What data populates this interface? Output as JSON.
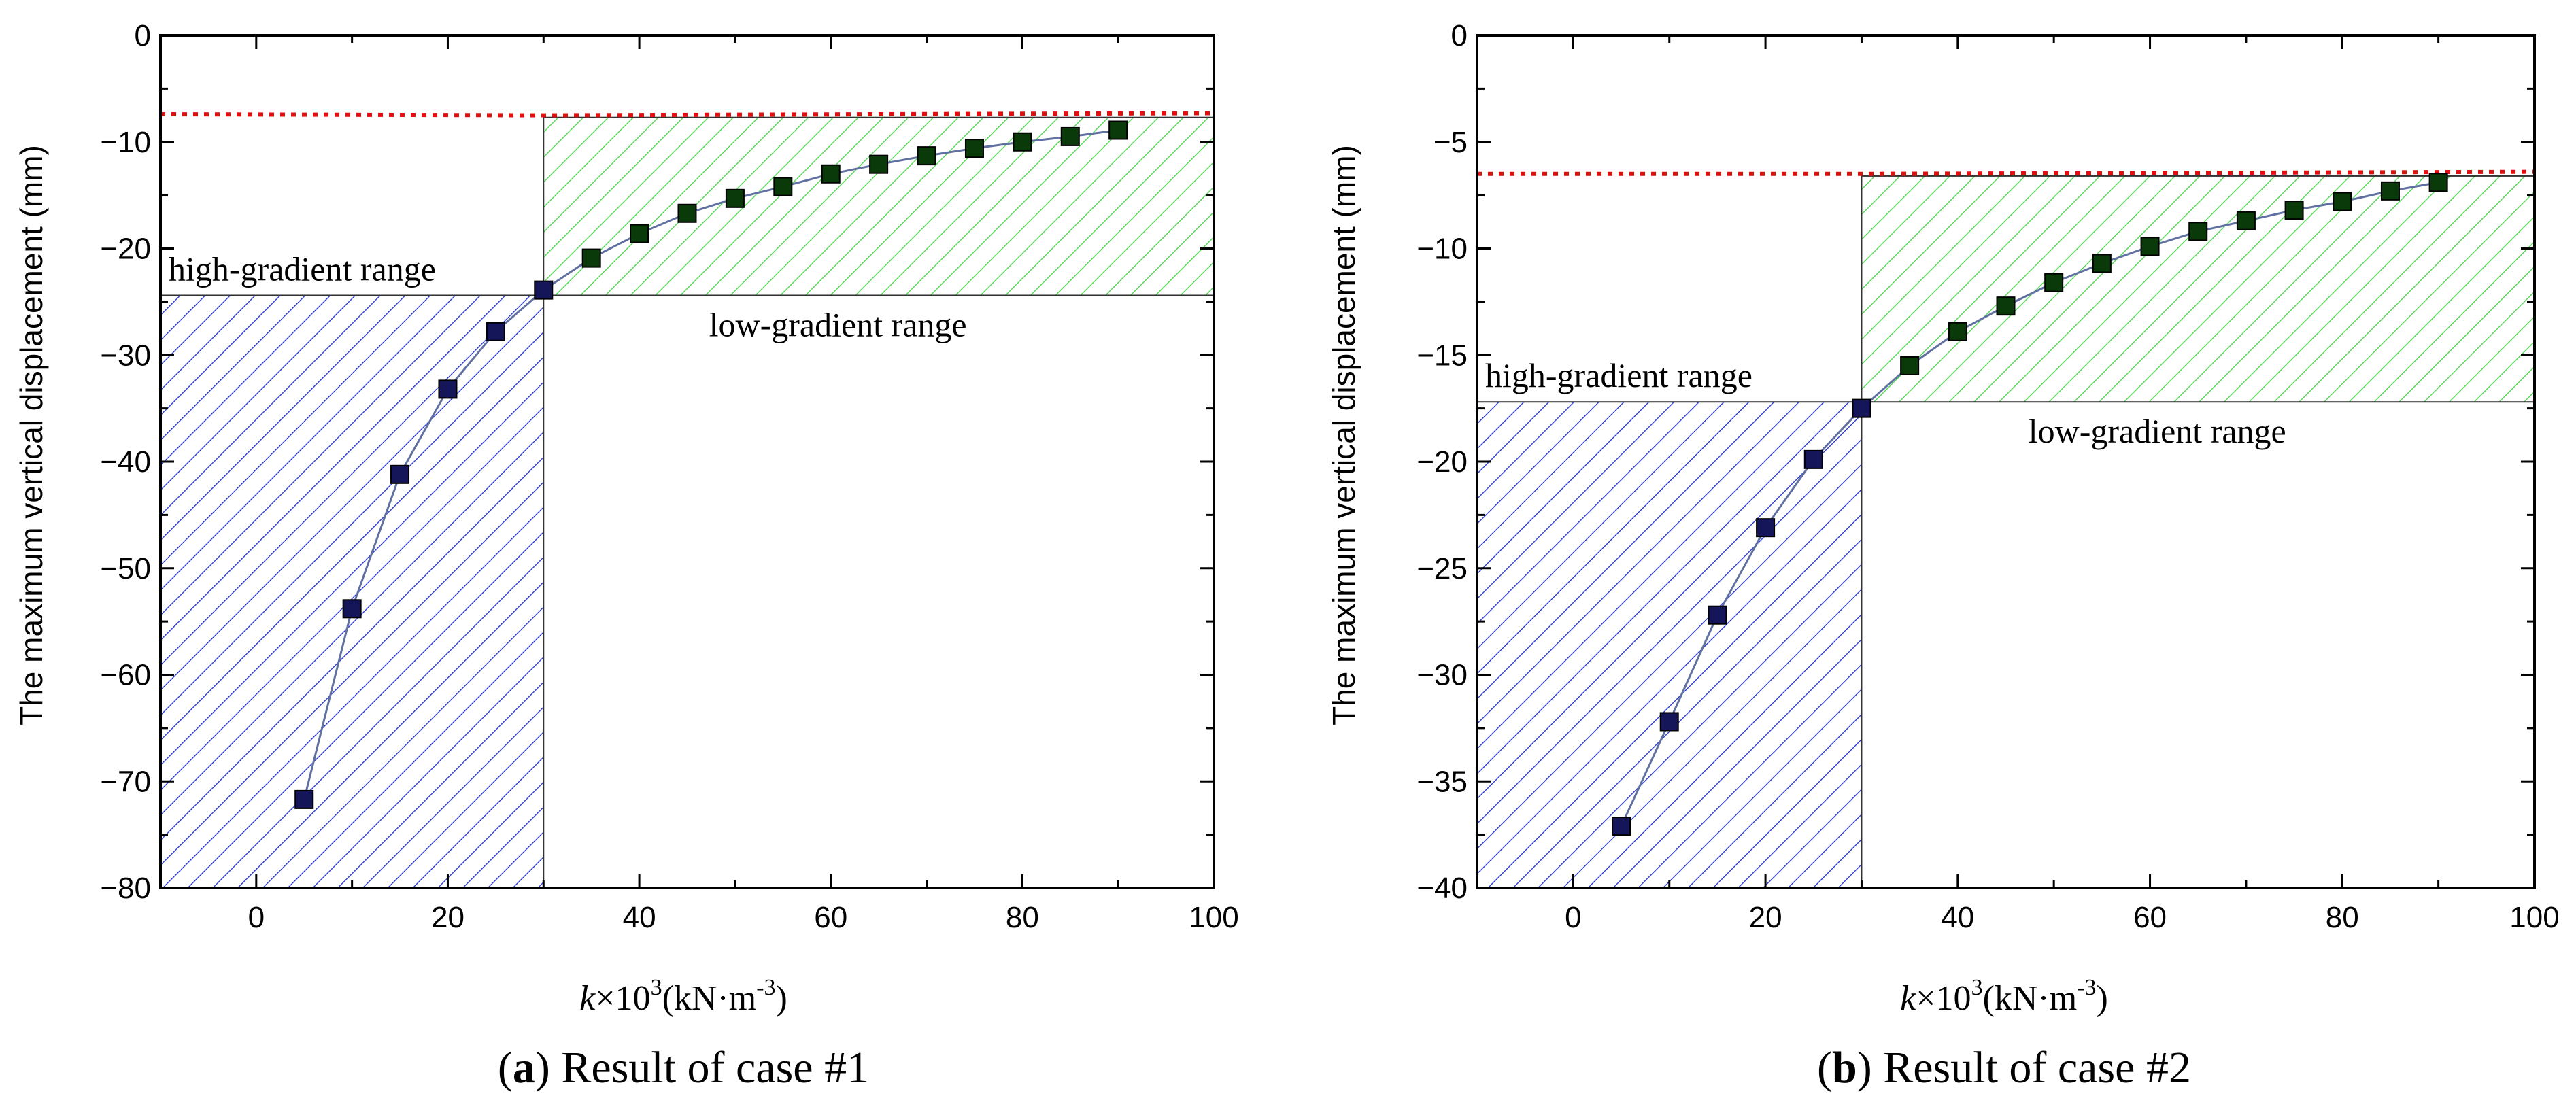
{
  "chart_data": [
    {
      "type": "line",
      "panel_letter": "a",
      "caption": "Result of case #1",
      "xlabel": {
        "var": "k",
        "times": "×10",
        "exp": "3",
        "unit_open": "(kN·m",
        "unit_exp": "-3",
        "unit_close": ")"
      },
      "ylabel": "The maximum vertical displacement (mm)",
      "xlim": [
        -10,
        100
      ],
      "ylim": [
        -80,
        0
      ],
      "xticks": [
        0,
        20,
        40,
        60,
        80,
        100
      ],
      "yticks": [
        -80,
        -70,
        -60,
        -50,
        -40,
        -30,
        -20,
        -10,
        0
      ],
      "x": [
        5,
        10,
        15,
        20,
        25,
        30,
        35,
        40,
        45,
        50,
        55,
        60,
        65,
        70,
        75,
        80,
        85,
        90
      ],
      "y": [
        -71.7,
        -53.8,
        -41.2,
        -33.2,
        -27.8,
        -23.9,
        -20.9,
        -18.6,
        -16.7,
        -15.3,
        -14.2,
        -13.0,
        -12.1,
        -11.3,
        -10.6,
        -10.0,
        -9.5,
        -8.9
      ],
      "reference_line": {
        "x": [
          -10,
          30,
          100
        ],
        "y": [
          -7.4,
          -7.5,
          -7.3
        ],
        "style": "dotted red"
      },
      "regions": [
        {
          "label": "high-gradient range",
          "x": [
            -10,
            30
          ],
          "y": [
            -80,
            -24.4
          ],
          "color": "#1f2fcf",
          "hatch": "diagonal"
        },
        {
          "label": "low-gradient range",
          "x": [
            30,
            100
          ],
          "y": [
            -24.4,
            -7.7
          ],
          "color": "#44d444",
          "hatch": "diagonal"
        }
      ],
      "colors": {
        "marker_fill_high": "#15155a",
        "marker_fill_low": "#0a3a0a",
        "line": "#6070a0",
        "reference": "#e01010"
      }
    },
    {
      "type": "line",
      "panel_letter": "b",
      "caption": "Result of case #2",
      "xlabel": {
        "var": "k",
        "times": "×10",
        "exp": "3",
        "unit_open": "(kN·m",
        "unit_exp": "-3",
        "unit_close": ")"
      },
      "ylabel": "The maximum vertical displacement (mm)",
      "xlim": [
        -10,
        100
      ],
      "ylim": [
        -40,
        0
      ],
      "xticks": [
        0,
        20,
        40,
        60,
        80,
        100
      ],
      "yticks": [
        -40,
        -35,
        -30,
        -25,
        -20,
        -15,
        -10,
        -5,
        0
      ],
      "x": [
        5,
        10,
        15,
        20,
        25,
        30,
        35,
        40,
        45,
        50,
        55,
        60,
        65,
        70,
        75,
        80,
        85,
        90
      ],
      "y": [
        -37.1,
        -32.2,
        -27.2,
        -23.1,
        -19.9,
        -17.5,
        -15.5,
        -13.9,
        -12.7,
        -11.6,
        -10.7,
        -9.9,
        -9.2,
        -8.7,
        -8.2,
        -7.8,
        -7.3,
        -6.9
      ],
      "reference_line": {
        "x": [
          -10,
          30,
          100
        ],
        "y": [
          -6.5,
          -6.5,
          -6.4
        ],
        "style": "dotted red"
      },
      "regions": [
        {
          "label": "high-gradient range",
          "x": [
            -10,
            30
          ],
          "y": [
            -40,
            -17.2
          ],
          "color": "#1f2fcf",
          "hatch": "diagonal"
        },
        {
          "label": "low-gradient range",
          "x": [
            30,
            100
          ],
          "y": [
            -17.2,
            -6.6
          ],
          "color": "#44d444",
          "hatch": "diagonal"
        }
      ],
      "colors": {
        "marker_fill_high": "#15155a",
        "marker_fill_low": "#0a3a0a",
        "line": "#6070a0",
        "reference": "#e01010"
      }
    }
  ]
}
